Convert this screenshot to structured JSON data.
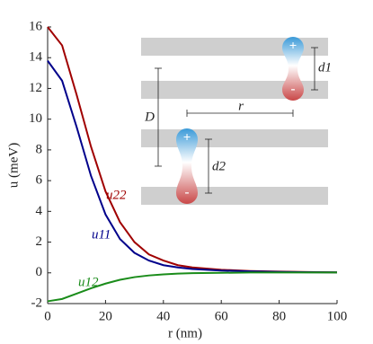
{
  "chart_data": {
    "type": "line",
    "xlabel": "r (nm)",
    "ylabel": "u (meV)",
    "x": [
      0,
      5,
      10,
      15,
      20,
      25,
      30,
      35,
      40,
      45,
      50,
      60,
      70,
      80,
      90,
      100
    ],
    "series": [
      {
        "name": "u22",
        "color": "#a00000",
        "values": [
          16,
          14.8,
          11.6,
          8.2,
          5.3,
          3.3,
          2.0,
          1.2,
          0.8,
          0.5,
          0.35,
          0.2,
          0.12,
          0.08,
          0.05,
          0.03
        ]
      },
      {
        "name": "u11",
        "color": "#00008b",
        "values": [
          13.8,
          12.5,
          9.5,
          6.3,
          3.8,
          2.2,
          1.3,
          0.8,
          0.5,
          0.35,
          0.25,
          0.15,
          0.1,
          0.06,
          0.04,
          0.03
        ]
      },
      {
        "name": "u12",
        "color": "#1a8c1a",
        "values": [
          -1.85,
          -1.7,
          -1.35,
          -1.0,
          -0.7,
          -0.45,
          -0.28,
          -0.17,
          -0.1,
          -0.05,
          -0.02,
          0,
          0.02,
          0.02,
          0.02,
          0.02
        ]
      }
    ],
    "xlim": [
      0,
      100
    ],
    "xticks": [
      0,
      20,
      40,
      60,
      80,
      100
    ],
    "ylim": [
      -2,
      16
    ],
    "yticks": [
      -2,
      0,
      2,
      4,
      6,
      8,
      10,
      12,
      14,
      16
    ],
    "annotations": [
      "D",
      "r",
      "d1",
      "d2",
      "+",
      "-",
      "+",
      "-"
    ]
  }
}
